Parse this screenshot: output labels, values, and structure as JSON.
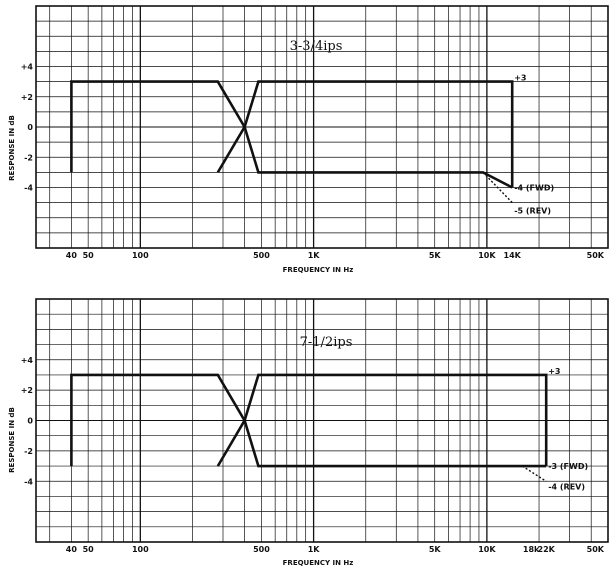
{
  "colors": {
    "ink": "#111111",
    "paper": "#ffffff"
  },
  "chart_data": [
    {
      "type": "line",
      "title": "3-3/4ips",
      "xlabel": "FREQUENCY IN Hz",
      "ylabel": "RESPONSE IN dB",
      "x_scale": "log",
      "xlim": [
        25,
        50000
      ],
      "ylim": [
        -8,
        8
      ],
      "grid": true,
      "x_ticks": [
        {
          "value": 40,
          "label": "40"
        },
        {
          "value": 50,
          "label": "50"
        },
        {
          "value": 100,
          "label": "100"
        },
        {
          "value": 500,
          "label": "500"
        },
        {
          "value": 1000,
          "label": "1K"
        },
        {
          "value": 5000,
          "label": "5K"
        },
        {
          "value": 10000,
          "label": "10K"
        },
        {
          "value": 14000,
          "label": "14K"
        },
        {
          "value": 50000,
          "label": "50K"
        }
      ],
      "y_ticks": [
        {
          "value": 4,
          "label": "+4"
        },
        {
          "value": 2,
          "label": "+2"
        },
        {
          "value": 0,
          "label": "0"
        },
        {
          "value": -2,
          "label": "-2"
        },
        {
          "value": -4,
          "label": "-4"
        }
      ],
      "series": [
        {
          "style": "solid",
          "points": [
            [
              40,
              -3
            ],
            [
              40,
              3
            ],
            [
              280,
              3
            ],
            [
              400,
              0
            ],
            [
              480,
              3
            ],
            [
              14000,
              3
            ],
            [
              14000,
              -4
            ]
          ]
        },
        {
          "style": "solid",
          "points": [
            [
              280,
              -3
            ],
            [
              400,
              0
            ],
            [
              480,
              -3
            ],
            [
              9500,
              -3
            ],
            [
              14000,
              -4
            ]
          ]
        },
        {
          "style": "dashed",
          "points": [
            [
              9500,
              -3
            ],
            [
              14000,
              -5
            ]
          ]
        }
      ],
      "annotations": [
        {
          "text": "+3",
          "x": 14000,
          "y": 3
        },
        {
          "text": "-4 (FWD)",
          "x": 14000,
          "y": -4
        },
        {
          "text": "-5 (REV)",
          "x": 14000,
          "y": -5
        }
      ]
    },
    {
      "type": "line",
      "title": "7-1/2ips",
      "xlabel": "FREQUENCY IN Hz",
      "ylabel": "RESPONSE IN dB",
      "x_scale": "log",
      "xlim": [
        25,
        50000
      ],
      "ylim": [
        -8,
        8
      ],
      "grid": true,
      "x_ticks": [
        {
          "value": 40,
          "label": "40"
        },
        {
          "value": 50,
          "label": "50"
        },
        {
          "value": 100,
          "label": "100"
        },
        {
          "value": 500,
          "label": "500"
        },
        {
          "value": 1000,
          "label": "1K"
        },
        {
          "value": 5000,
          "label": "5K"
        },
        {
          "value": 10000,
          "label": "10K"
        },
        {
          "value": 18000,
          "label": "18k"
        },
        {
          "value": 22000,
          "label": "22K"
        },
        {
          "value": 50000,
          "label": "50K"
        }
      ],
      "y_ticks": [
        {
          "value": 4,
          "label": "+4"
        },
        {
          "value": 2,
          "label": "+2"
        },
        {
          "value": 0,
          "label": "0"
        },
        {
          "value": -2,
          "label": "-2"
        },
        {
          "value": -4,
          "label": "-4"
        }
      ],
      "series": [
        {
          "style": "solid",
          "points": [
            [
              40,
              -3
            ],
            [
              40,
              3
            ],
            [
              280,
              3
            ],
            [
              400,
              0
            ],
            [
              480,
              3
            ],
            [
              22000,
              3
            ],
            [
              22000,
              -3
            ]
          ]
        },
        {
          "style": "solid",
          "points": [
            [
              280,
              -3
            ],
            [
              400,
              0
            ],
            [
              480,
              -3
            ],
            [
              22000,
              -3
            ]
          ]
        },
        {
          "style": "dashed",
          "points": [
            [
              16000,
              -3
            ],
            [
              22000,
              -4
            ]
          ]
        }
      ],
      "annotations": [
        {
          "text": "+3",
          "x": 22000,
          "y": 3
        },
        {
          "text": "-3 (FWD)",
          "x": 22000,
          "y": -3
        },
        {
          "text": "-4 (REV)",
          "x": 22000,
          "y": -4
        }
      ]
    }
  ]
}
